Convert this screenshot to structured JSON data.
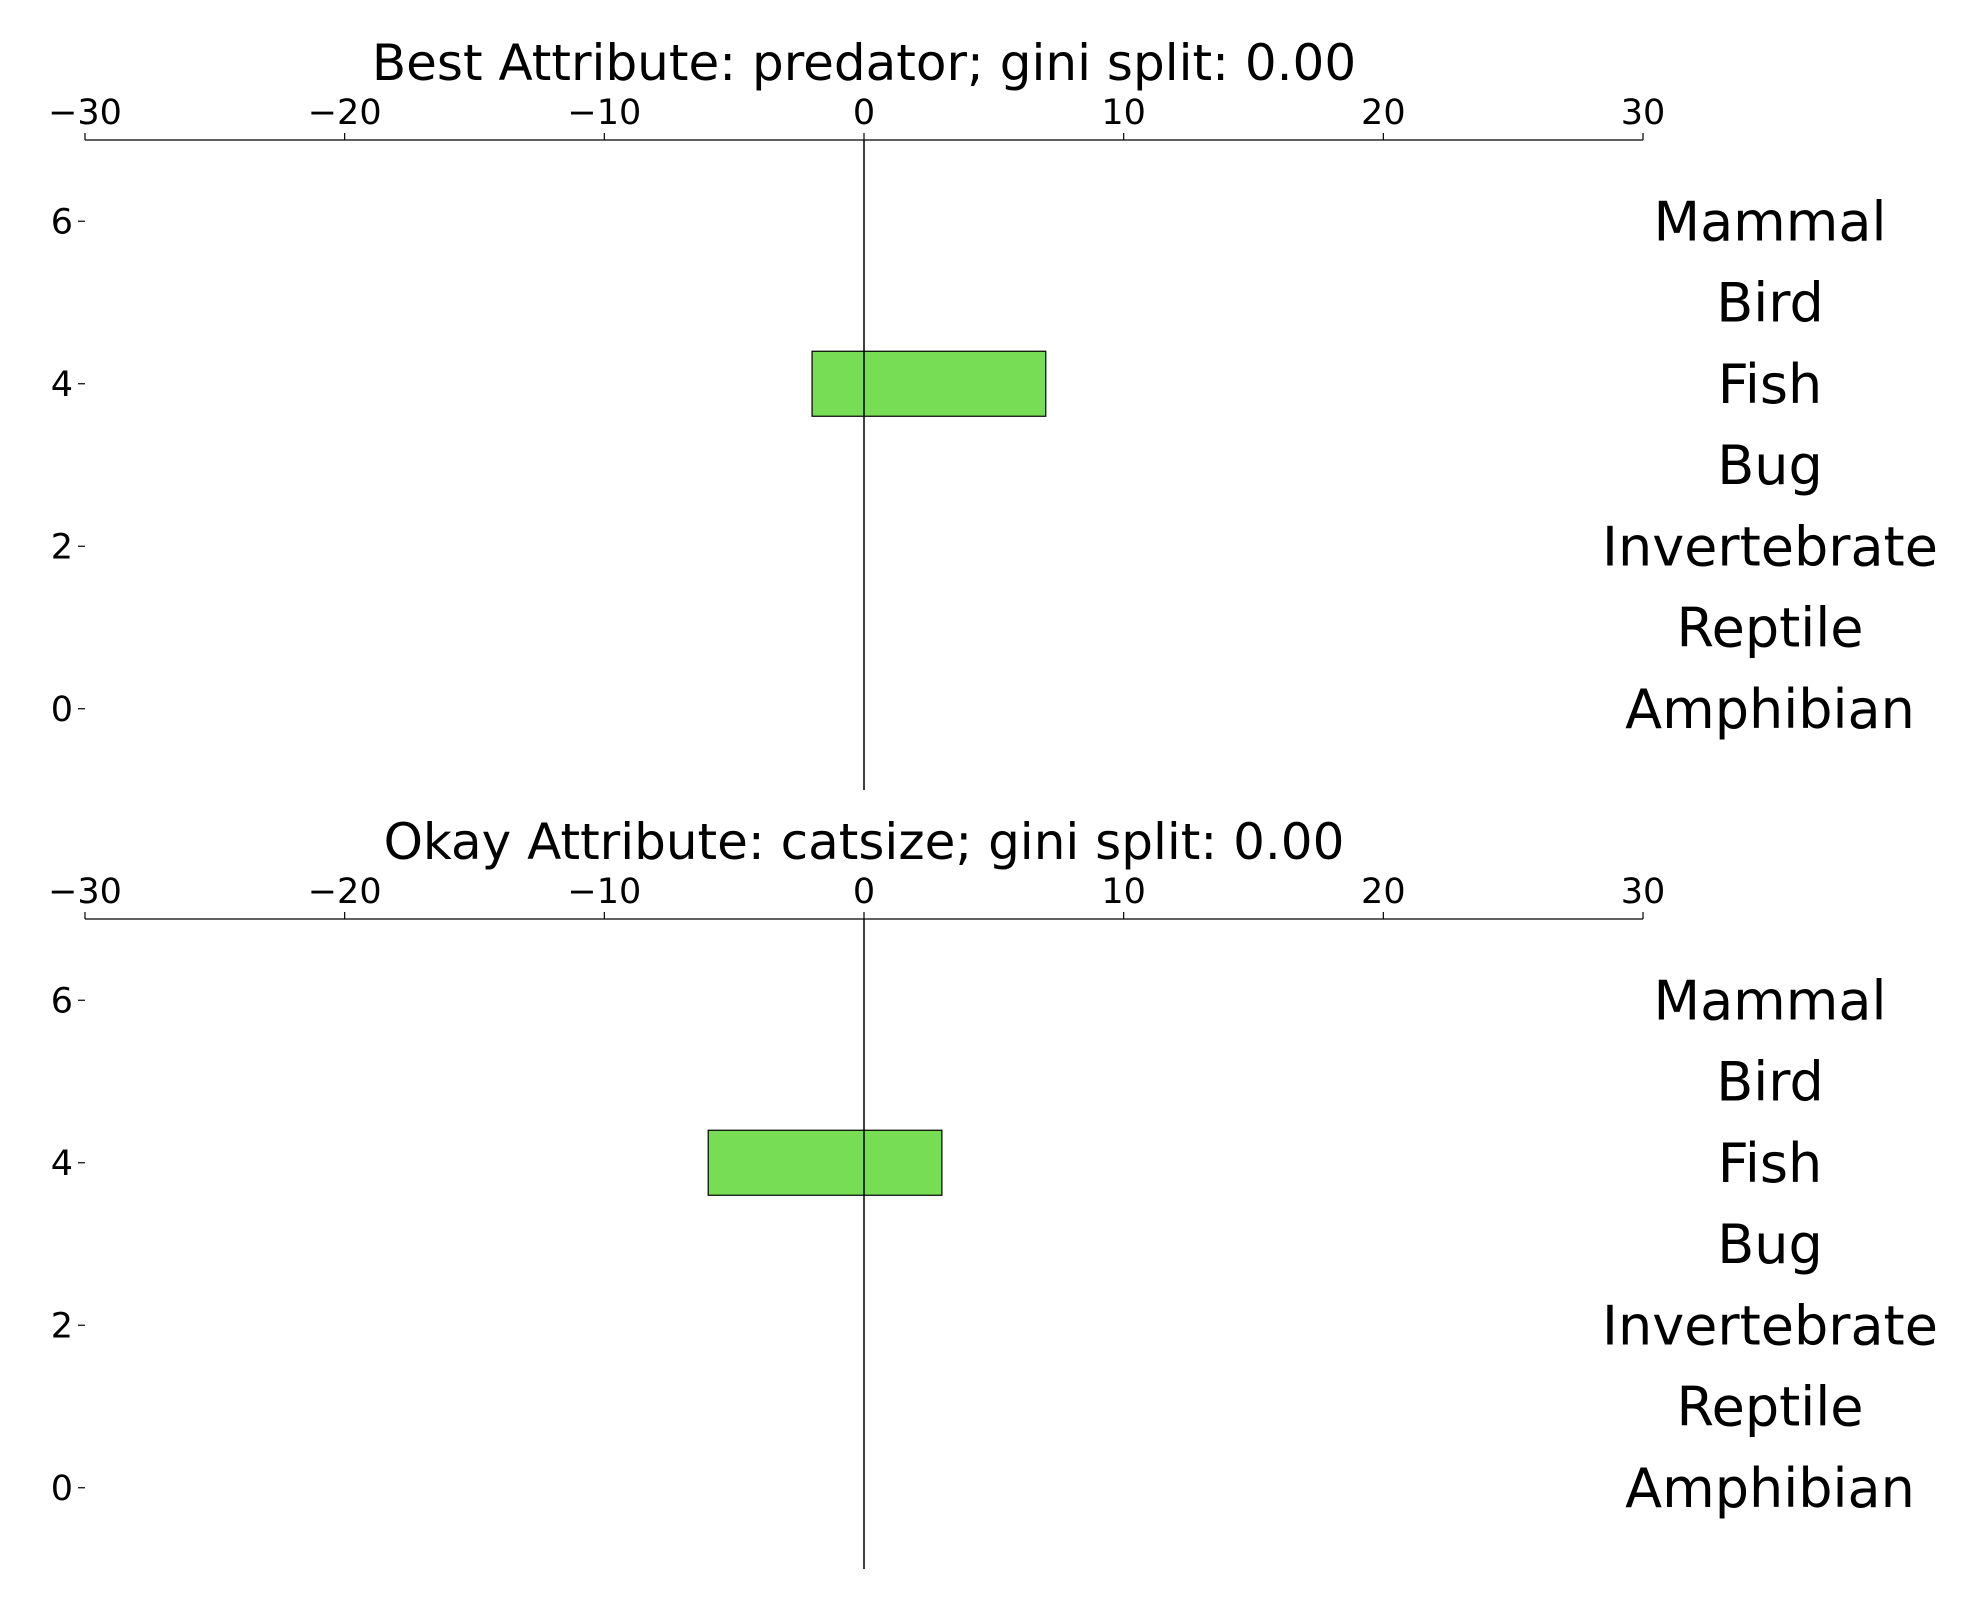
{
  "chart_data": [
    {
      "type": "bar",
      "orientation": "horizontal",
      "title": "Best Attribute: predator; gini split: 0.00",
      "xlim": [
        -30,
        30
      ],
      "ylim": [
        -1,
        7
      ],
      "xticks": [
        -30,
        -20,
        -10,
        0,
        10,
        20,
        30
      ],
      "xtick_labels": [
        "−30",
        "−20",
        "−10",
        "0",
        "10",
        "20",
        "30"
      ],
      "yticks": [
        0,
        2,
        4,
        6
      ],
      "ytick_labels": [
        "0",
        "2",
        "4",
        "6"
      ],
      "categories": [
        "Amphibian",
        "Reptile",
        "Invertebrate",
        "Bug",
        "Fish",
        "Bird",
        "Mammal"
      ],
      "category_positions": [
        0,
        1,
        2,
        3,
        4,
        5,
        6
      ],
      "bars": [
        {
          "category": "Fish",
          "y": 4,
          "start": -2,
          "end": 7
        }
      ],
      "bar_color": "#77dd55",
      "zero_line": true,
      "grid": false,
      "legend": "none"
    },
    {
      "type": "bar",
      "orientation": "horizontal",
      "title": "Okay Attribute: catsize; gini split: 0.00",
      "xlim": [
        -30,
        30
      ],
      "ylim": [
        -1,
        7
      ],
      "xticks": [
        -30,
        -20,
        -10,
        0,
        10,
        20,
        30
      ],
      "xtick_labels": [
        "−30",
        "−20",
        "−10",
        "0",
        "10",
        "20",
        "30"
      ],
      "yticks": [
        0,
        2,
        4,
        6
      ],
      "ytick_labels": [
        "0",
        "2",
        "4",
        "6"
      ],
      "categories": [
        "Amphibian",
        "Reptile",
        "Invertebrate",
        "Bug",
        "Fish",
        "Bird",
        "Mammal"
      ],
      "category_positions": [
        0,
        1,
        2,
        3,
        4,
        5,
        6
      ],
      "bars": [
        {
          "category": "Fish",
          "y": 4,
          "start": -6,
          "end": 3
        }
      ],
      "bar_color": "#77dd55",
      "zero_line": true,
      "grid": false,
      "legend": "none"
    }
  ]
}
